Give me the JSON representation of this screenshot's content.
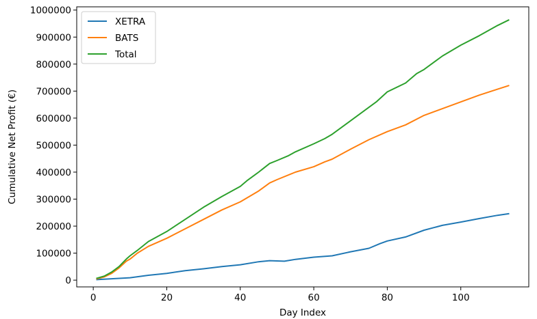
{
  "chart_data": {
    "type": "line",
    "title": "",
    "xlabel": "Day Index",
    "ylabel": "Cumulative Net Profit (€)",
    "xlim": [
      -4.5,
      118.5
    ],
    "ylim": [
      -25000,
      1012000
    ],
    "xticks": [
      0,
      20,
      40,
      60,
      80,
      100
    ],
    "yticks": [
      0,
      100000,
      200000,
      300000,
      400000,
      500000,
      600000,
      700000,
      800000,
      900000,
      1000000
    ],
    "grid": false,
    "legend": "top-left",
    "series": [
      {
        "name": "XETRA",
        "color": "#1f77b4",
        "points": [
          [
            1,
            2000
          ],
          [
            5,
            5000
          ],
          [
            10,
            9000
          ],
          [
            15,
            18000
          ],
          [
            20,
            25000
          ],
          [
            25,
            35000
          ],
          [
            30,
            42000
          ],
          [
            35,
            50000
          ],
          [
            40,
            57000
          ],
          [
            45,
            68000
          ],
          [
            48,
            72000
          ],
          [
            50,
            71000
          ],
          [
            52,
            70000
          ],
          [
            55,
            77000
          ],
          [
            60,
            85000
          ],
          [
            65,
            90000
          ],
          [
            70,
            105000
          ],
          [
            75,
            118000
          ],
          [
            78,
            135000
          ],
          [
            80,
            145000
          ],
          [
            85,
            160000
          ],
          [
            90,
            185000
          ],
          [
            95,
            203000
          ],
          [
            100,
            215000
          ],
          [
            105,
            228000
          ],
          [
            110,
            240000
          ],
          [
            113,
            246000
          ]
        ]
      },
      {
        "name": "BATS",
        "color": "#ff7f0e",
        "points": [
          [
            1,
            5000
          ],
          [
            3,
            12000
          ],
          [
            5,
            25000
          ],
          [
            7,
            45000
          ],
          [
            9,
            70000
          ],
          [
            10,
            78000
          ],
          [
            12,
            100000
          ],
          [
            15,
            125000
          ],
          [
            20,
            155000
          ],
          [
            25,
            190000
          ],
          [
            30,
            225000
          ],
          [
            35,
            260000
          ],
          [
            40,
            290000
          ],
          [
            45,
            330000
          ],
          [
            48,
            360000
          ],
          [
            50,
            372000
          ],
          [
            55,
            400000
          ],
          [
            60,
            420000
          ],
          [
            63,
            438000
          ],
          [
            65,
            448000
          ],
          [
            70,
            485000
          ],
          [
            75,
            520000
          ],
          [
            80,
            550000
          ],
          [
            85,
            575000
          ],
          [
            90,
            610000
          ],
          [
            95,
            635000
          ],
          [
            100,
            660000
          ],
          [
            105,
            685000
          ],
          [
            110,
            707000
          ],
          [
            113,
            720000
          ]
        ]
      },
      {
        "name": "Total",
        "color": "#2ca02c",
        "points": [
          [
            1,
            7000
          ],
          [
            3,
            15000
          ],
          [
            5,
            30000
          ],
          [
            7,
            50000
          ],
          [
            9,
            78000
          ],
          [
            10,
            90000
          ],
          [
            12,
            110000
          ],
          [
            15,
            143000
          ],
          [
            20,
            180000
          ],
          [
            25,
            225000
          ],
          [
            30,
            270000
          ],
          [
            35,
            310000
          ],
          [
            40,
            347000
          ],
          [
            42,
            370000
          ],
          [
            45,
            400000
          ],
          [
            48,
            432000
          ],
          [
            50,
            443000
          ],
          [
            53,
            460000
          ],
          [
            55,
            475000
          ],
          [
            60,
            505000
          ],
          [
            63,
            524000
          ],
          [
            65,
            540000
          ],
          [
            70,
            590000
          ],
          [
            75,
            640000
          ],
          [
            77,
            660000
          ],
          [
            80,
            697000
          ],
          [
            85,
            730000
          ],
          [
            88,
            765000
          ],
          [
            90,
            780000
          ],
          [
            95,
            830000
          ],
          [
            100,
            870000
          ],
          [
            105,
            905000
          ],
          [
            110,
            943000
          ],
          [
            113,
            963000
          ]
        ]
      }
    ]
  }
}
